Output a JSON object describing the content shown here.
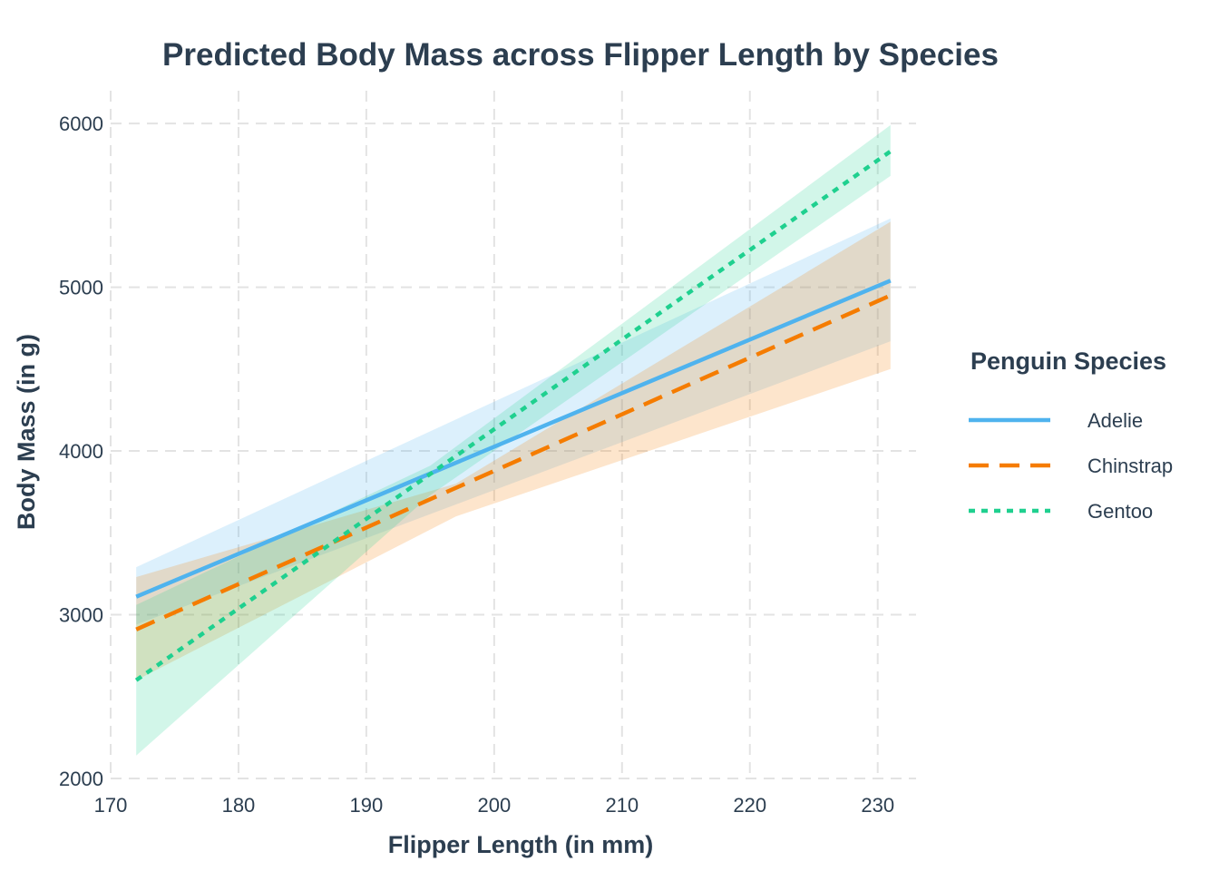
{
  "chart_data": {
    "type": "line",
    "title": "Predicted Body Mass across Flipper Length by Species",
    "xlabel": "Flipper Length (in mm)",
    "ylabel": "Body Mass (in g)",
    "xlim": [
      170,
      233
    ],
    "ylim": [
      2000,
      6200
    ],
    "x_ticks": [
      170,
      180,
      190,
      200,
      210,
      220,
      230
    ],
    "y_ticks": [
      2000,
      3000,
      4000,
      5000,
      6000
    ],
    "grid": true,
    "legend": {
      "title": "Penguin Species",
      "placement": "right"
    },
    "series": [
      {
        "name": "Adelie",
        "color": "#4fb3ee",
        "dash": "solid",
        "x": [
          172,
          231
        ],
        "y": [
          3110,
          5040
        ],
        "ci_lower": [
          2940,
          4670
        ],
        "ci_upper": [
          3290,
          5420
        ]
      },
      {
        "name": "Chinstrap",
        "color": "#f57c00",
        "dash": "dashed",
        "x": [
          172,
          231
        ],
        "y": [
          2910,
          4950
        ],
        "ci_lower": [
          2600,
          4500
        ],
        "ci_upper": [
          3230,
          5400
        ],
        "ci_mid_x": 197,
        "ci_mid": [
          3600,
          3800
        ]
      },
      {
        "name": "Gentoo",
        "color": "#1fd08f",
        "dash": "dotted",
        "x": [
          172,
          231
        ],
        "y": [
          2600,
          5830
        ],
        "ci_lower": [
          2140,
          5680
        ],
        "ci_upper": [
          3060,
          5990
        ],
        "ci_mid_x": 195,
        "ci_mid": [
          3730,
          3910
        ]
      }
    ]
  }
}
